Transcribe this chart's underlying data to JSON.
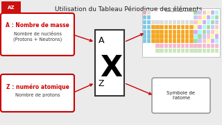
{
  "title": "Utilisation du Tableau Périodique des éléments",
  "title_fontsize": 6.5,
  "bg_color": "#ebebeb",
  "label_A_red": "A : Nombre de masse",
  "label_A_sub": "Nombre de nucléons\n(Protons + Neutrons)",
  "label_Z_red": "Z : numéro atomique",
  "label_Z_sub": "Nombre de protons",
  "label_symbole": "Symbole de\nl'atome",
  "red_color": "#cc0000",
  "box_outline": "#333333",
  "rounded_box_color": "#ffffff",
  "rounded_box_outline": "#cc0000",
  "arrow_color": "#cc0000",
  "symbol_box_outline": "#999999"
}
